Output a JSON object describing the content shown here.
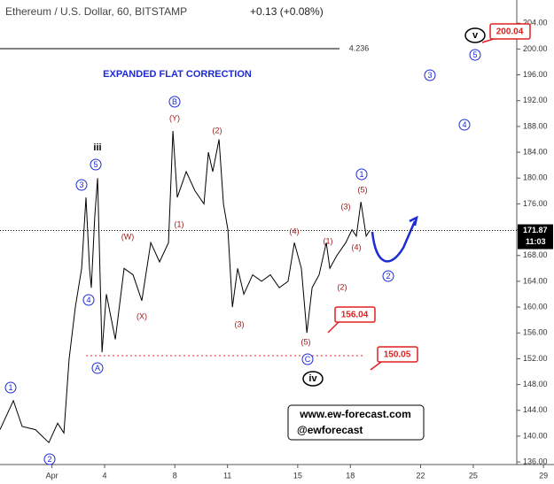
{
  "chart_data": {
    "type": "line",
    "title": "Ethereum / U.S. Dollar, 60, BITSTAMP",
    "change": "+0.13 (+0.08%)",
    "subtitle": "EXPANDED FLAT CORRECTION",
    "fib_level": "4.236",
    "watermark": [
      "www.ew-forecast.com",
      "@ewforecast"
    ],
    "color": "#000000",
    "x": [
      -1.96,
      -1.2,
      -0.7,
      0.06,
      0.82,
      1.32,
      1.68,
      1.98,
      2.33,
      2.69,
      2.94,
      3.14,
      3.24,
      3.44,
      3.6,
      3.85,
      4.1,
      4.61,
      5.11,
      5.62,
      6.12,
      6.63,
      7.13,
      7.64,
      7.89,
      8.14,
      8.65,
      9.15,
      9.66,
      9.91,
      10.16,
      10.52,
      10.77,
      11.02,
      11.28,
      11.58,
      11.93,
      12.43,
      12.94,
      13.44,
      13.95,
      14.45,
      14.81,
      15.21,
      15.52,
      15.82,
      16.22,
      16.63,
      16.83,
      17.23,
      17.74,
      18.09,
      18.34,
      18.6,
      18.9,
      19.1
    ],
    "values": [
      141,
      145.5,
      141.5,
      141,
      139,
      142,
      140.5,
      152,
      160,
      166,
      177,
      166,
      163,
      174,
      180,
      153,
      162,
      155,
      166,
      165,
      161,
      170,
      167,
      170,
      187.3,
      177,
      181,
      178,
      176,
      184,
      181,
      186,
      176,
      172,
      160,
      166,
      162,
      165,
      164,
      165,
      163,
      164,
      170,
      166,
      156,
      163,
      165,
      170,
      166,
      168,
      170,
      172,
      171,
      176.3,
      171,
      171.87
    ],
    "current_price": 171.87,
    "countdown": "11:03",
    "targets": [
      156.04,
      150.05,
      200.04
    ],
    "xlim": [
      -1.96,
      29.6
    ],
    "ylim": [
      135.6,
      207.6
    ],
    "yticks": [
      {
        "value": 136,
        "label": "136.00"
      },
      {
        "value": 140,
        "label": "140.00"
      },
      {
        "value": 144,
        "label": "144.00"
      },
      {
        "value": 148,
        "label": "148.00"
      },
      {
        "value": 152,
        "label": "152.00"
      },
      {
        "value": 156,
        "label": "156.00"
      },
      {
        "value": 160,
        "label": "160.00"
      },
      {
        "value": 164,
        "label": "164.00"
      },
      {
        "value": 168,
        "label": "168.00"
      },
      {
        "value": 172,
        "label": "172.00"
      },
      {
        "value": 176,
        "label": "176.00"
      },
      {
        "value": 180,
        "label": "180.00"
      },
      {
        "value": 184,
        "label": "184.00"
      },
      {
        "value": 188,
        "label": "188.00"
      },
      {
        "value": 192,
        "label": "192.00"
      },
      {
        "value": 196,
        "label": "196.00"
      },
      {
        "value": 200,
        "label": "200.00"
      },
      {
        "value": 204,
        "label": "204.00"
      }
    ],
    "xticks": [
      {
        "value": 1,
        "label": "Apr"
      },
      4,
      8,
      11,
      15,
      18,
      22,
      25,
      29
    ],
    "blue_labels": [
      "1",
      "2",
      "3",
      "4",
      "5",
      "A",
      "B",
      "C",
      "1",
      "2",
      "3",
      "4",
      "5"
    ],
    "red_labels": [
      "(W)",
      "(X)",
      "(1)",
      "(Y)",
      "(2)",
      "(3)",
      "(4)",
      "(5)",
      "(1)",
      "(2)",
      "(3)",
      "(4)",
      "(5)"
    ],
    "black_labels": [
      "iii",
      "iv",
      "v"
    ]
  }
}
